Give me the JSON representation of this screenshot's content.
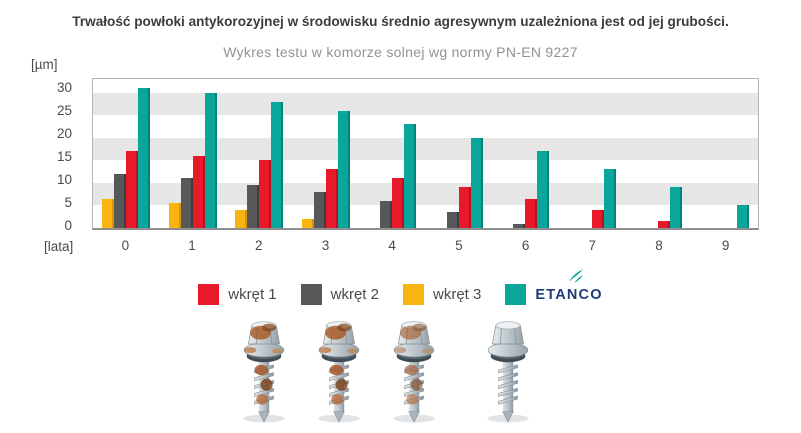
{
  "title": "Trwałość powłoki antykorozyjnej w środowisku średnio agresywnym uzależniona jest od jej grubości.",
  "subtitle": "Wykres testu w komorze solnej wg normy PN-EN 9227",
  "chart_data": {
    "type": "bar",
    "title": "Wykres testu w komorze solnej wg normy PN-EN 9227",
    "y_unit_label": "[µm]",
    "x_unit_label": "[lata]",
    "categories": [
      "0",
      "1",
      "2",
      "3",
      "4",
      "5",
      "6",
      "7",
      "8",
      "9"
    ],
    "yticks": [
      0,
      5,
      10,
      15,
      20,
      25,
      30
    ],
    "ylim": [
      0,
      33
    ],
    "grid": "horizontal-gray-bands",
    "stripe_bands": [
      [
        5,
        10
      ],
      [
        15,
        20
      ],
      [
        25,
        30
      ]
    ],
    "stripe_color": "#e6e6e6",
    "legend_position": "bottom",
    "draw_order": [
      2,
      1,
      0,
      3
    ],
    "series": [
      {
        "name": "wkręt 1",
        "color": "#e8192b",
        "edge": "#bd0e1e",
        "values": [
          17,
          16,
          15,
          13,
          11,
          9,
          6.5,
          4,
          1.5,
          0
        ]
      },
      {
        "name": "wkręt 2",
        "color": "#57585a",
        "edge": "#3d3e40",
        "values": [
          12,
          11,
          9.5,
          8,
          6,
          3.5,
          1,
          0,
          0,
          0
        ]
      },
      {
        "name": "wkręt 3",
        "color": "#f8b511",
        "edge": "#d6950a",
        "values": [
          6.5,
          5.5,
          4,
          2,
          0,
          0,
          0,
          0,
          0,
          0
        ]
      },
      {
        "name": "ETANCO",
        "color": "#0aa69c",
        "edge": "#00837b",
        "values": [
          31,
          30,
          28,
          26,
          23,
          20,
          17,
          13,
          9,
          5
        ]
      }
    ]
  },
  "legend": {
    "items": [
      {
        "label": "wkręt 1",
        "color": "#e8192b"
      },
      {
        "label": "wkręt 2",
        "color": "#57585a"
      },
      {
        "label": "wkręt 3",
        "color": "#f8b511"
      },
      {
        "label": "ETANCO",
        "color": "#0aa69c",
        "logo": true
      }
    ],
    "brand": {
      "text": "ETANCO",
      "color": "#1e3b7a",
      "icon_color": "#0aa69c"
    }
  },
  "screws": [
    {
      "name": "screw-photo-1",
      "corrosion": "heavy"
    },
    {
      "name": "screw-photo-2",
      "corrosion": "heavy"
    },
    {
      "name": "screw-photo-3",
      "corrosion": "moderate"
    },
    {
      "name": "screw-photo-4",
      "corrosion": "none"
    }
  ],
  "colors": {
    "background": "#ffffff",
    "plot_border": "#b5b5b5",
    "axis_line": "#8e8e8e",
    "text_dark": "#3c3c3b",
    "text_gray": "#8f9296"
  }
}
